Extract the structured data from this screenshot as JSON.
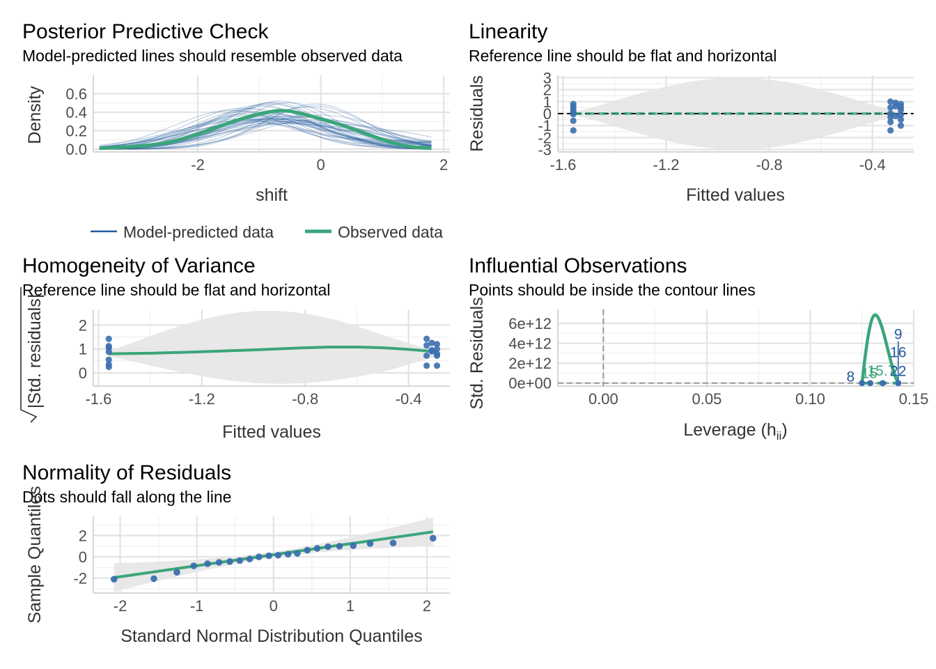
{
  "colors": {
    "model_line": "#1f5a9c",
    "observed_line": "#3aa57a",
    "points": "#3b6fae",
    "band": "#e6e6e6",
    "ref_line": "#000000",
    "dashed_ref": "#999999"
  },
  "chart_data": [
    {
      "id": "ppc",
      "type": "line",
      "title": "Posterior Predictive Check",
      "subtitle": "Model-predicted lines should resemble observed data",
      "xlabel": "shift",
      "ylabel": "Density",
      "xlim": [
        -3.7,
        2.1
      ],
      "ylim": [
        -0.03,
        0.8
      ],
      "x_ticks": [
        -2,
        0,
        2
      ],
      "x_tick_labels": [
        "-2",
        "0",
        "2"
      ],
      "y_ticks": [
        0.0,
        0.2,
        0.4,
        0.6
      ],
      "y_tick_labels": [
        "0.0",
        "0.2",
        "0.4",
        "0.6"
      ],
      "grid": true,
      "legend_position": "bottom",
      "legend": [
        "Model-predicted data",
        "Observed data"
      ],
      "series": [
        {
          "name": "Observed data",
          "x": [
            -3.6,
            -3.2,
            -2.8,
            -2.4,
            -2.0,
            -1.6,
            -1.2,
            -0.8,
            -0.6,
            -0.4,
            0.0,
            0.4,
            0.8,
            1.2,
            1.5,
            1.8
          ],
          "values": [
            0.01,
            0.02,
            0.04,
            0.08,
            0.16,
            0.26,
            0.35,
            0.41,
            0.42,
            0.4,
            0.33,
            0.25,
            0.15,
            0.06,
            0.02,
            0.01
          ]
        },
        {
          "name": "Model-predicted data",
          "draws": 40,
          "x_range": [
            -3.6,
            1.8
          ]
        }
      ]
    },
    {
      "id": "linearity",
      "type": "scatter",
      "title": "Linearity",
      "subtitle": "Reference line should be flat and horizontal",
      "xlabel": "Fitted values",
      "ylabel": "Residuals",
      "xlim": [
        -1.62,
        -0.24
      ],
      "ylim": [
        -3.2,
        3.2
      ],
      "x_ticks": [
        -1.6,
        -1.2,
        -0.8,
        -0.4
      ],
      "x_tick_labels": [
        "-1.6",
        "-1.2",
        "-0.8",
        "-0.4"
      ],
      "y_ticks": [
        -3,
        -2,
        -1,
        0,
        1,
        2,
        3
      ],
      "y_tick_labels": [
        "-3",
        "-2",
        "-1",
        "0",
        "1",
        "2",
        "3"
      ],
      "grid": true,
      "reference_line": 0,
      "points": [
        {
          "x": -1.56,
          "y": 0.8
        },
        {
          "x": -1.56,
          "y": 0.55
        },
        {
          "x": -1.56,
          "y": 0.1
        },
        {
          "x": -1.56,
          "y": -0.05
        },
        {
          "x": -1.56,
          "y": -0.6
        },
        {
          "x": -1.56,
          "y": -1.4
        },
        {
          "x": -1.56,
          "y": 0.3
        },
        {
          "x": -0.33,
          "y": 1.0
        },
        {
          "x": -0.33,
          "y": 0.5
        },
        {
          "x": -0.33,
          "y": 0.0
        },
        {
          "x": -0.33,
          "y": -0.3
        },
        {
          "x": -0.33,
          "y": -0.7
        },
        {
          "x": -0.33,
          "y": -1.4
        },
        {
          "x": -0.31,
          "y": 0.6
        },
        {
          "x": -0.31,
          "y": -0.2
        },
        {
          "x": -0.29,
          "y": 0.8
        },
        {
          "x": -0.29,
          "y": 0.3
        },
        {
          "x": -0.29,
          "y": -0.1
        },
        {
          "x": -0.29,
          "y": -0.5
        },
        {
          "x": -0.29,
          "y": -1.0
        },
        {
          "x": -0.31,
          "y": 0.9
        },
        {
          "x": -0.29,
          "y": 0.55
        }
      ],
      "fit": {
        "x": [
          -1.56,
          -0.29
        ],
        "y": [
          0.0,
          0.0
        ]
      }
    },
    {
      "id": "homogeneity",
      "type": "scatter",
      "title": "Homogeneity of Variance",
      "subtitle": "Reference line should be flat and horizontal",
      "xlabel": "Fitted values",
      "ylabel": "|Std. residuals|",
      "xlim": [
        -1.62,
        -0.24
      ],
      "ylim": [
        -0.55,
        2.65
      ],
      "x_ticks": [
        -1.6,
        -1.2,
        -0.8,
        -0.4
      ],
      "x_tick_labels": [
        "-1.6",
        "-1.2",
        "-0.8",
        "-0.4"
      ],
      "y_ticks": [
        0,
        1,
        2
      ],
      "y_tick_labels": [
        "0",
        "1",
        "2"
      ],
      "grid": true,
      "points": [
        {
          "x": -1.56,
          "y": 1.42
        },
        {
          "x": -1.56,
          "y": 1.12
        },
        {
          "x": -1.56,
          "y": 1.05
        },
        {
          "x": -1.56,
          "y": 0.88
        },
        {
          "x": -1.56,
          "y": 0.55
        },
        {
          "x": -1.56,
          "y": 0.35
        },
        {
          "x": -1.56,
          "y": 0.25
        },
        {
          "x": -0.33,
          "y": 1.42
        },
        {
          "x": -0.33,
          "y": 1.15
        },
        {
          "x": -0.33,
          "y": 0.72
        },
        {
          "x": -0.33,
          "y": 0.3
        },
        {
          "x": -0.31,
          "y": 1.25
        },
        {
          "x": -0.31,
          "y": 0.9
        },
        {
          "x": -0.29,
          "y": 1.2
        },
        {
          "x": -0.29,
          "y": 1.0
        },
        {
          "x": -0.29,
          "y": 0.8
        },
        {
          "x": -0.29,
          "y": 0.72
        },
        {
          "x": -0.29,
          "y": 0.3
        },
        {
          "x": -0.31,
          "y": 0.95
        }
      ],
      "fit": {
        "x": [
          -1.56,
          -1.4,
          -1.2,
          -1.0,
          -0.8,
          -0.7,
          -0.6,
          -0.5,
          -0.4,
          -0.33,
          -0.29
        ],
        "y": [
          0.8,
          0.82,
          0.88,
          0.96,
          1.05,
          1.08,
          1.08,
          1.05,
          0.98,
          0.92,
          0.88
        ]
      }
    },
    {
      "id": "influential",
      "type": "scatter",
      "title": "Influential Observations",
      "subtitle": "Points should be inside the contour lines",
      "xlabel": "Leverage (h",
      "xlabel_sub": "ii",
      "xlabel_end": ")",
      "ylabel": "Std. Residuals",
      "xlim": [
        -0.022,
        0.15
      ],
      "ylim": [
        -300000000000.0,
        7400000000000.0
      ],
      "x_ticks": [
        0.0,
        0.05,
        0.1,
        0.15
      ],
      "x_tick_labels": [
        "0.00",
        "0.05",
        "0.10",
        "0.15"
      ],
      "y_ticks": [
        0,
        2000000000000.0,
        4000000000000.0,
        6000000000000.0
      ],
      "y_tick_labels": [
        "0e+00",
        "2e+12",
        "4e+12",
        "6e+12"
      ],
      "grid": true,
      "vertical_reference": 0,
      "horizontal_reference": 0,
      "contour": {
        "x": [
          0.125,
          0.127,
          0.129,
          0.131,
          0.133,
          0.135,
          0.137,
          0.139,
          0.141,
          0.1425
        ],
        "y": [
          0,
          3500000000000.0,
          6000000000000.0,
          7000000000000.0,
          6600000000000.0,
          5400000000000.0,
          3800000000000.0,
          2100000000000.0,
          700000000000.0,
          0
        ]
      },
      "points": [
        {
          "x": 0.125,
          "y": 0
        },
        {
          "x": 0.129,
          "y": 0
        },
        {
          "x": 0.135,
          "y": 0
        },
        {
          "x": 0.1425,
          "y": 0
        },
        {
          "x": 0.1425,
          "y": 0
        }
      ],
      "labels": [
        {
          "text": "8",
          "x": 0.1195,
          "y": 650000000000.0,
          "color": "#1f5a9c"
        },
        {
          "text": "15",
          "x": 0.1285,
          "y": 1000000000000.0,
          "color": "#3aa57a"
        },
        {
          "text": "15.7",
          "x": 0.1345,
          "y": 1250000000000.0,
          "color": "#3aa57a"
        },
        {
          "text": "9",
          "x": 0.1425,
          "y": 4900000000000.0,
          "color": "#1f5a9c"
        },
        {
          "text": "16",
          "x": 0.1425,
          "y": 3100000000000.0,
          "color": "#1f5a9c"
        },
        {
          "text": "22",
          "x": 0.1425,
          "y": 1200000000000.0,
          "color": "#1f5a9c"
        }
      ]
    },
    {
      "id": "normality",
      "type": "scatter",
      "title": "Normality of Residuals",
      "subtitle": "Dots should fall along the line",
      "xlabel": "Standard Normal Distribution Quantiles",
      "ylabel": "Sample Quantiles",
      "xlim": [
        -2.35,
        2.3
      ],
      "ylim": [
        -3.4,
        3.8
      ],
      "x_ticks": [
        -2,
        -1,
        0,
        1,
        2
      ],
      "x_tick_labels": [
        "-2",
        "-1",
        "0",
        "1",
        "2"
      ],
      "y_ticks": [
        -2,
        0,
        2
      ],
      "y_tick_labels": [
        "-2",
        "0",
        "2"
      ],
      "grid": true,
      "points": [
        {
          "x": -2.08,
          "y": -2.1
        },
        {
          "x": -1.56,
          "y": -2.05
        },
        {
          "x": -1.26,
          "y": -1.45
        },
        {
          "x": -1.04,
          "y": -0.85
        },
        {
          "x": -0.86,
          "y": -0.65
        },
        {
          "x": -0.71,
          "y": -0.52
        },
        {
          "x": -0.57,
          "y": -0.45
        },
        {
          "x": -0.44,
          "y": -0.35
        },
        {
          "x": -0.31,
          "y": -0.2
        },
        {
          "x": -0.19,
          "y": 0.0
        },
        {
          "x": -0.06,
          "y": 0.1
        },
        {
          "x": 0.06,
          "y": 0.15
        },
        {
          "x": 0.19,
          "y": 0.25
        },
        {
          "x": 0.31,
          "y": 0.32
        },
        {
          "x": 0.44,
          "y": 0.62
        },
        {
          "x": 0.57,
          "y": 0.8
        },
        {
          "x": 0.71,
          "y": 0.95
        },
        {
          "x": 0.86,
          "y": 1.0
        },
        {
          "x": 1.04,
          "y": 1.05
        },
        {
          "x": 1.26,
          "y": 1.25
        },
        {
          "x": 1.56,
          "y": 1.3
        },
        {
          "x": 2.08,
          "y": 1.75
        }
      ],
      "fit": {
        "x": [
          -2.08,
          2.08
        ],
        "y": [
          -1.95,
          2.35
        ]
      },
      "band": {
        "x": [
          -2.08,
          0,
          2.08
        ],
        "lower": [
          -3.0,
          0.0,
          1.3
        ],
        "upper": [
          -0.9,
          0.4,
          3.6
        ]
      }
    }
  ]
}
